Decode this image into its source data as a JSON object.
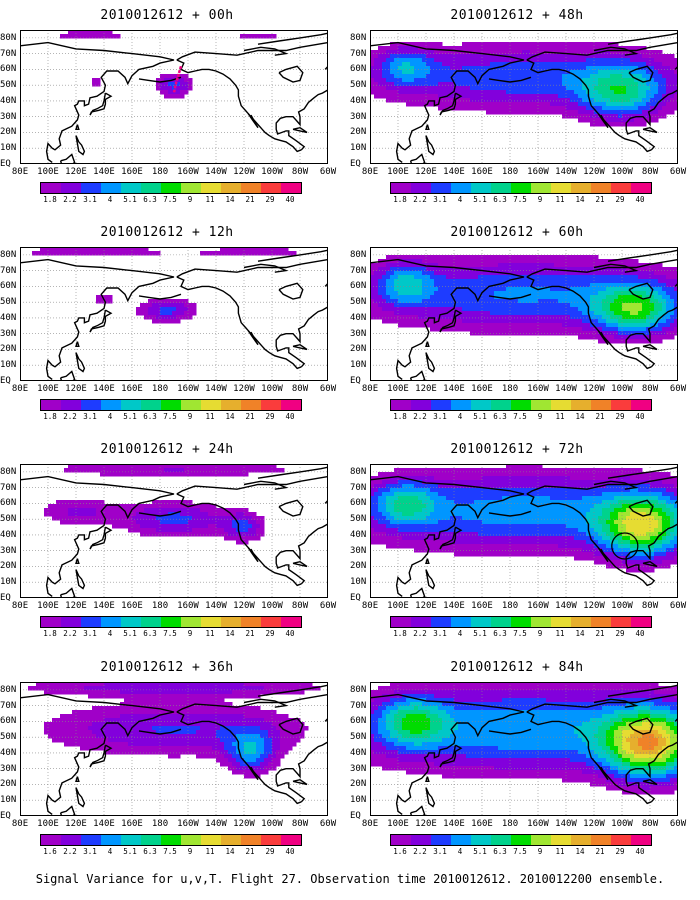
{
  "panels": [
    {
      "title": "2010012612 + 00h",
      "intensity": 0
    },
    {
      "title": "2010012612 + 48h",
      "intensity": 4
    },
    {
      "title": "2010012612 + 12h",
      "intensity": 1
    },
    {
      "title": "2010012612 + 60h",
      "intensity": 5
    },
    {
      "title": "2010012612 + 24h",
      "intensity": 2
    },
    {
      "title": "2010012612 + 72h",
      "intensity": 6
    },
    {
      "title": "2010012612 + 36h",
      "intensity": 3
    },
    {
      "title": "2010012612 + 84h",
      "intensity": 7
    }
  ],
  "lon_labels": [
    "80E",
    "100E",
    "120E",
    "140E",
    "160E",
    "180",
    "160W",
    "140W",
    "120W",
    "100W",
    "80W",
    "60W"
  ],
  "lat_labels": [
    "80N",
    "70N",
    "60N",
    "50N",
    "40N",
    "30N",
    "20N",
    "10N",
    "EQ"
  ],
  "colorbar": {
    "labels": [
      "1.8",
      "2.2",
      "3.1",
      "4",
      "5.1",
      "6.3",
      "7.5",
      "9",
      "11",
      "14",
      "21",
      "29",
      "40"
    ],
    "labels_alt": [
      "1.6",
      "2.2",
      "3.1",
      "4",
      "5.1",
      "6.3",
      "7.5",
      "9",
      "11",
      "14",
      "21",
      "29",
      "40"
    ],
    "colors": [
      "#a000c8",
      "#8200dc",
      "#1e3cff",
      "#0096ff",
      "#00c8c8",
      "#00d28c",
      "#00dc00",
      "#a0e632",
      "#e6dc32",
      "#e6af2d",
      "#f08228",
      "#fa3c3c",
      "#f00082"
    ]
  },
  "footer": "Signal Variance for u,v,T. Flight 27. Observation time 2010012612. 2010012200 ensemble."
}
